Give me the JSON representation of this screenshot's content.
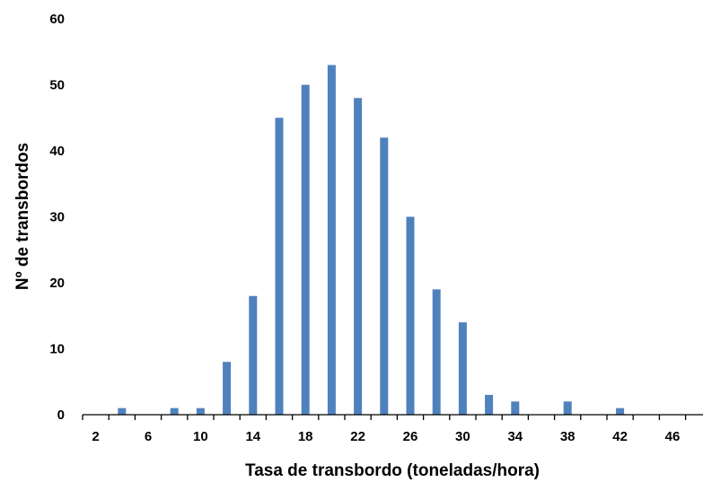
{
  "chart_data": {
    "type": "bar",
    "title": "",
    "xlabel": "Tasa de transbordo (toneladas/hora)",
    "ylabel": "Nº de transbordos",
    "x": [
      2,
      4,
      6,
      8,
      10,
      12,
      14,
      16,
      18,
      20,
      22,
      24,
      26,
      28,
      30,
      32,
      34,
      36,
      38,
      40,
      42,
      44,
      46,
      48
    ],
    "values": [
      0,
      1,
      0,
      1,
      1,
      8,
      18,
      45,
      50,
      53,
      48,
      42,
      30,
      19,
      14,
      3,
      2,
      0,
      2,
      0,
      1,
      0,
      0,
      0
    ],
    "xticks": [
      "2",
      "6",
      "10",
      "14",
      "18",
      "22",
      "26",
      "30",
      "34",
      "38",
      "42",
      "46"
    ],
    "yticks": [
      "0",
      "10",
      "20",
      "30",
      "40",
      "50",
      "60"
    ],
    "ylim": [
      0,
      60
    ],
    "grid": false,
    "legend": "none",
    "bar_color": "#4F81BD"
  }
}
